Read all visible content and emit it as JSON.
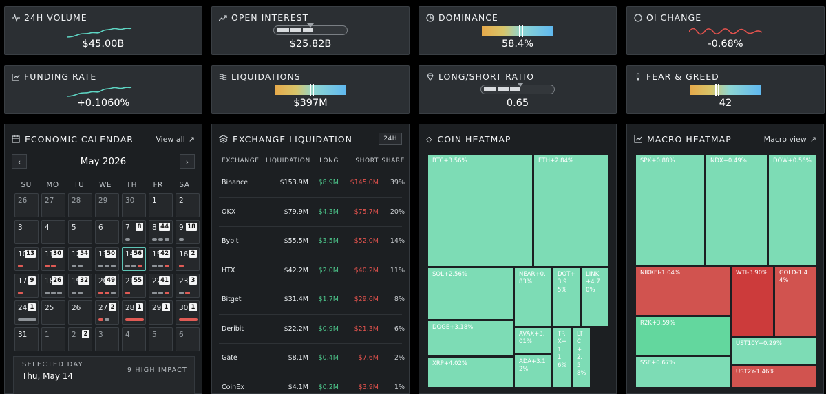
{
  "stats": [
    {
      "title": "24H VOLUME",
      "icon": "pulse-icon",
      "value": "$45.00B",
      "viz": "sparkline-teal"
    },
    {
      "title": "OPEN INTEREST",
      "icon": "trending-up-icon",
      "value": "$25.82B",
      "viz": "ratio-bar",
      "level": 0.5
    },
    {
      "title": "DOMINANCE",
      "icon": "pie-clock-icon",
      "value": "58.4%",
      "viz": "gradient",
      "level": 0.55
    },
    {
      "title": "OI CHANGE",
      "icon": "circle-icon",
      "value": "-0.68%",
      "viz": "sparkline-red"
    },
    {
      "title": "FUNDING RATE",
      "icon": "chart-line-icon",
      "value": "+0.1060%",
      "viz": "sparkline-teal"
    },
    {
      "title": "LIQUIDATIONS",
      "icon": "waves-icon",
      "value": "$397M",
      "viz": "gradient",
      "level": 0.52
    },
    {
      "title": "LONG/SHORT RATIO",
      "icon": "diamond-icon",
      "value": "0.65",
      "viz": "ratio-bar",
      "level": 0.54
    },
    {
      "title": "FEAR & GREED",
      "icon": "thermometer-icon",
      "value": "42",
      "viz": "gradient",
      "level": 0.38
    }
  ],
  "calendar": {
    "title": "ECONOMIC CALENDAR",
    "view_all": "View all",
    "month": "May 2026",
    "weekdays": [
      "SU",
      "MO",
      "TU",
      "WE",
      "TH",
      "FR",
      "SA"
    ],
    "days": [
      {
        "n": "26",
        "muted": true
      },
      {
        "n": "27",
        "muted": true
      },
      {
        "n": "28",
        "muted": true
      },
      {
        "n": "29",
        "muted": true
      },
      {
        "n": "30",
        "muted": true
      },
      {
        "n": "1"
      },
      {
        "n": "2"
      },
      {
        "n": "3"
      },
      {
        "n": "4"
      },
      {
        "n": "5"
      },
      {
        "n": "6"
      },
      {
        "n": "7",
        "c": "8",
        "dots": [
          "g"
        ]
      },
      {
        "n": "8",
        "c": "44",
        "dots": [
          "g",
          "g",
          "g"
        ]
      },
      {
        "n": "9",
        "c": "18",
        "dots": [
          "g"
        ]
      },
      {
        "n": "10",
        "c": "13",
        "dots": [
          "r"
        ]
      },
      {
        "n": "11",
        "c": "30",
        "dots": [
          "r",
          "r"
        ]
      },
      {
        "n": "12",
        "c": "54",
        "dots": [
          "g",
          "g"
        ]
      },
      {
        "n": "13",
        "c": "50",
        "dots": [
          "g",
          "g",
          "g"
        ]
      },
      {
        "n": "14",
        "c": "56",
        "dots": [
          "g",
          "g",
          "r"
        ],
        "selected": true
      },
      {
        "n": "15",
        "c": "42",
        "dots": [
          "g",
          "g",
          "r"
        ]
      },
      {
        "n": "16",
        "c": "2",
        "dots": [
          "r"
        ]
      },
      {
        "n": "17",
        "c": "9",
        "dots": [
          "r"
        ]
      },
      {
        "n": "18",
        "c": "26",
        "dots": [
          "g",
          "g",
          "g"
        ]
      },
      {
        "n": "19",
        "c": "32",
        "dots": [
          "g",
          "g"
        ]
      },
      {
        "n": "20",
        "c": "49",
        "dots": [
          "r",
          "r",
          "g"
        ]
      },
      {
        "n": "21",
        "c": "55",
        "dots": [
          "r"
        ]
      },
      {
        "n": "22",
        "c": "41",
        "dots": [
          "g",
          "g",
          "r"
        ]
      },
      {
        "n": "23",
        "c": "3",
        "dots": [
          "g",
          "r"
        ]
      },
      {
        "n": "24",
        "c": "1",
        "dots": [
          "gl"
        ]
      },
      {
        "n": "25"
      },
      {
        "n": "26"
      },
      {
        "n": "27",
        "c": "2",
        "dots": [
          "r",
          "g"
        ]
      },
      {
        "n": "28",
        "c": "1",
        "dots": [
          "rl"
        ]
      },
      {
        "n": "29",
        "c": "1"
      },
      {
        "n": "30",
        "c": "1",
        "dots": [
          "rl"
        ]
      },
      {
        "n": "31"
      },
      {
        "n": "1",
        "muted": true
      },
      {
        "n": "2",
        "muted": true,
        "c": "2"
      },
      {
        "n": "3",
        "muted": true
      },
      {
        "n": "4",
        "muted": true
      },
      {
        "n": "5",
        "muted": true
      },
      {
        "n": "6",
        "muted": true
      }
    ],
    "selected_label": "SELECTED DAY",
    "selected_date": "Thu, May 14",
    "selected_impact": "9 HIGH IMPACT"
  },
  "liquidation": {
    "title": "EXCHANGE LIQUIDATION",
    "badge": "24H",
    "columns": [
      "EXCHANGE",
      "LIQUIDATION",
      "LONG",
      "SHORT",
      "SHARE"
    ],
    "rows": [
      [
        "Binance",
        "$153.9M",
        "$8.9M",
        "$145.0M",
        "39%"
      ],
      [
        "OKX",
        "$79.9M",
        "$4.3M",
        "$75.7M",
        "20%"
      ],
      [
        "Bybit",
        "$55.5M",
        "$3.5M",
        "$52.0M",
        "14%"
      ],
      [
        "HTX",
        "$42.2M",
        "$2.0M",
        "$40.2M",
        "11%"
      ],
      [
        "Bitget",
        "$31.4M",
        "$1.7M",
        "$29.6M",
        "8%"
      ],
      [
        "Deribit",
        "$22.2M",
        "$0.9M",
        "$21.3M",
        "6%"
      ],
      [
        "Gate",
        "$8.1M",
        "$0.4M",
        "$7.6M",
        "2%"
      ],
      [
        "CoinEx",
        "$4.1M",
        "$0.2M",
        "$3.9M",
        "1%"
      ]
    ]
  },
  "coin_heatmap": {
    "title": "COIN HEATMAP",
    "tiles": [
      {
        "label": "BTC+3.56%",
        "color": "g"
      },
      {
        "label": "ETH+2.84%",
        "color": "g"
      },
      {
        "label": "SOL+2.56%",
        "color": "g"
      },
      {
        "label": "NEAR+0.83%",
        "color": "g"
      },
      {
        "label": "DOT+3.95%",
        "color": "g"
      },
      {
        "label": "LINK+4.70%",
        "color": "g"
      },
      {
        "label": "DOGE+3.18%",
        "color": "g"
      },
      {
        "label": "AVAX+3.01%",
        "color": "g"
      },
      {
        "label": "TRX+1.16%",
        "color": "g"
      },
      {
        "label": "LTC+2.58%",
        "color": "g"
      },
      {
        "label": "XRP+4.02%",
        "color": "g"
      },
      {
        "label": "ADA+3.12%",
        "color": "g"
      }
    ]
  },
  "macro_heatmap": {
    "title": "MACRO HEATMAP",
    "link": "Macro view",
    "tiles": [
      {
        "label": "SPX+0.88%",
        "color": "g"
      },
      {
        "label": "NDX+0.49%",
        "color": "g"
      },
      {
        "label": "DOW+0.56%",
        "color": "g"
      },
      {
        "label": "NIKKEI-1.04%",
        "color": "r"
      },
      {
        "label": "WTI-3.90%",
        "color": "r2"
      },
      {
        "label": "GOLD-1.44%",
        "color": "r"
      },
      {
        "label": "R2K+3.59%",
        "color": "g2"
      },
      {
        "label": "UST10Y+0.29%",
        "color": "g"
      },
      {
        "label": "SSE+0.67%",
        "color": "g"
      },
      {
        "label": "UST2Y-1.46%",
        "color": "r"
      }
    ]
  }
}
